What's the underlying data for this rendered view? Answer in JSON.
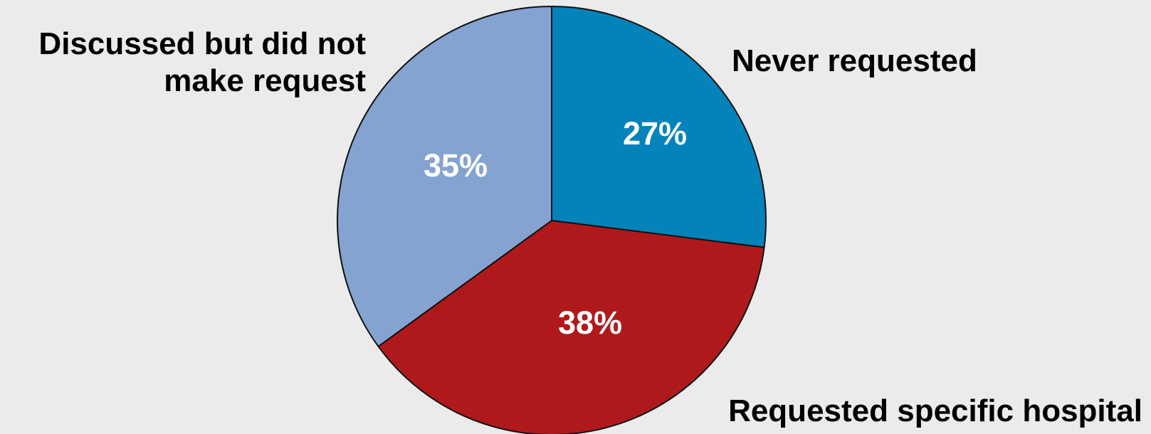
{
  "chart_data": {
    "type": "pie",
    "slices": [
      {
        "label": "Never requested",
        "value": 27,
        "value_label": "27%",
        "color": "#0383b9"
      },
      {
        "label": "Requested specific hospital",
        "value": 38,
        "value_label": "38%",
        "color": "#b0191b"
      },
      {
        "label": "Discussed but did not make request",
        "label_lines": [
          "Discussed but did not",
          "make request"
        ],
        "value": 35,
        "value_label": "35%",
        "color": "#84a3d0"
      }
    ],
    "start": "12 o'clock",
    "direction": "clockwise",
    "background": "#ebebeb"
  }
}
